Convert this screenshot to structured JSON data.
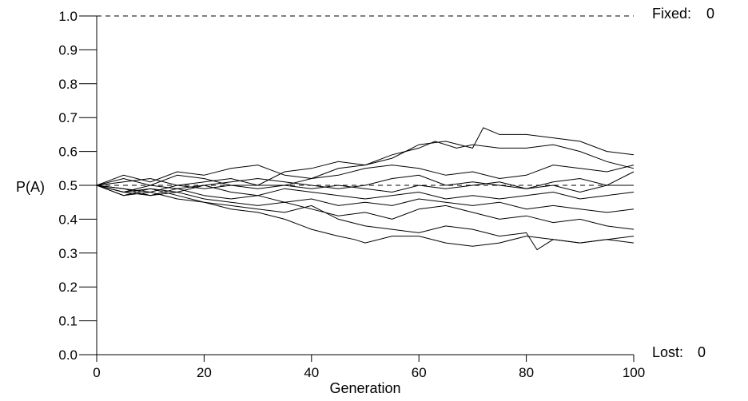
{
  "chart_data": {
    "type": "line",
    "xlabel": "Generation",
    "ylabel": "P(A)",
    "xlim": [
      0,
      100
    ],
    "ylim": [
      0.0,
      1.0
    ],
    "x_ticks": [
      "0",
      "20",
      "40",
      "60",
      "80",
      "100"
    ],
    "y_ticks": [
      "0.0",
      "0.1",
      "0.2",
      "0.3",
      "0.4",
      "0.5",
      "0.6",
      "0.7",
      "0.8",
      "0.9",
      "1.0"
    ],
    "reference_lines": [
      0.0,
      0.5,
      1.0
    ],
    "fixed_label": "Fixed:",
    "fixed_count": "0",
    "lost_label": "Lost:",
    "lost_count": "0",
    "series": [
      {
        "values": [
          [
            0,
            0.5
          ],
          [
            5,
            0.52
          ],
          [
            10,
            0.5
          ],
          [
            15,
            0.53
          ],
          [
            20,
            0.52
          ],
          [
            25,
            0.5
          ],
          [
            30,
            0.5
          ],
          [
            35,
            0.54
          ],
          [
            40,
            0.55
          ],
          [
            45,
            0.57
          ],
          [
            50,
            0.56
          ],
          [
            55,
            0.58
          ],
          [
            60,
            0.62
          ],
          [
            65,
            0.63
          ],
          [
            70,
            0.61
          ],
          [
            72,
            0.67
          ],
          [
            75,
            0.65
          ],
          [
            80,
            0.65
          ],
          [
            85,
            0.64
          ],
          [
            90,
            0.63
          ],
          [
            95,
            0.6
          ],
          [
            100,
            0.59
          ]
        ]
      },
      {
        "values": [
          [
            0,
            0.5
          ],
          [
            5,
            0.51
          ],
          [
            10,
            0.52
          ],
          [
            15,
            0.5
          ],
          [
            20,
            0.51
          ],
          [
            25,
            0.52
          ],
          [
            30,
            0.5
          ],
          [
            35,
            0.5
          ],
          [
            40,
            0.52
          ],
          [
            45,
            0.55
          ],
          [
            50,
            0.56
          ],
          [
            55,
            0.59
          ],
          [
            60,
            0.61
          ],
          [
            63,
            0.63
          ],
          [
            67,
            0.61
          ],
          [
            70,
            0.62
          ],
          [
            75,
            0.61
          ],
          [
            80,
            0.61
          ],
          [
            85,
            0.62
          ],
          [
            90,
            0.6
          ],
          [
            95,
            0.57
          ],
          [
            100,
            0.55
          ]
        ]
      },
      {
        "values": [
          [
            0,
            0.5
          ],
          [
            5,
            0.53
          ],
          [
            10,
            0.51
          ],
          [
            15,
            0.54
          ],
          [
            20,
            0.53
          ],
          [
            25,
            0.55
          ],
          [
            30,
            0.56
          ],
          [
            35,
            0.53
          ],
          [
            40,
            0.52
          ],
          [
            45,
            0.53
          ],
          [
            50,
            0.55
          ],
          [
            55,
            0.56
          ],
          [
            60,
            0.55
          ],
          [
            65,
            0.53
          ],
          [
            70,
            0.54
          ],
          [
            75,
            0.52
          ],
          [
            80,
            0.53
          ],
          [
            85,
            0.56
          ],
          [
            90,
            0.55
          ],
          [
            95,
            0.54
          ],
          [
            100,
            0.56
          ]
        ]
      },
      {
        "values": [
          [
            0,
            0.5
          ],
          [
            5,
            0.48
          ],
          [
            10,
            0.5
          ],
          [
            15,
            0.49
          ],
          [
            20,
            0.5
          ],
          [
            25,
            0.51
          ],
          [
            30,
            0.52
          ],
          [
            35,
            0.51
          ],
          [
            40,
            0.5
          ],
          [
            45,
            0.49
          ],
          [
            50,
            0.5
          ],
          [
            55,
            0.52
          ],
          [
            60,
            0.53
          ],
          [
            65,
            0.5
          ],
          [
            70,
            0.51
          ],
          [
            75,
            0.5
          ],
          [
            80,
            0.49
          ],
          [
            85,
            0.51
          ],
          [
            90,
            0.52
          ],
          [
            95,
            0.5
          ],
          [
            100,
            0.54
          ]
        ]
      },
      {
        "values": [
          [
            0,
            0.5
          ],
          [
            5,
            0.49
          ],
          [
            10,
            0.48
          ],
          [
            15,
            0.5
          ],
          [
            20,
            0.49
          ],
          [
            25,
            0.5
          ],
          [
            30,
            0.49
          ],
          [
            35,
            0.5
          ],
          [
            40,
            0.49
          ],
          [
            45,
            0.5
          ],
          [
            50,
            0.49
          ],
          [
            55,
            0.48
          ],
          [
            60,
            0.5
          ],
          [
            65,
            0.49
          ],
          [
            70,
            0.5
          ],
          [
            75,
            0.51
          ],
          [
            80,
            0.49
          ],
          [
            85,
            0.5
          ],
          [
            90,
            0.48
          ],
          [
            95,
            0.5
          ],
          [
            100,
            0.5
          ]
        ]
      },
      {
        "values": [
          [
            0,
            0.5
          ],
          [
            5,
            0.47
          ],
          [
            10,
            0.49
          ],
          [
            15,
            0.48
          ],
          [
            20,
            0.5
          ],
          [
            25,
            0.48
          ],
          [
            30,
            0.47
          ],
          [
            35,
            0.49
          ],
          [
            40,
            0.48
          ],
          [
            45,
            0.47
          ],
          [
            50,
            0.46
          ],
          [
            55,
            0.47
          ],
          [
            60,
            0.48
          ],
          [
            65,
            0.46
          ],
          [
            70,
            0.47
          ],
          [
            75,
            0.46
          ],
          [
            80,
            0.47
          ],
          [
            85,
            0.48
          ],
          [
            90,
            0.46
          ],
          [
            95,
            0.47
          ],
          [
            100,
            0.48
          ]
        ]
      },
      {
        "values": [
          [
            0,
            0.5
          ],
          [
            5,
            0.48
          ],
          [
            10,
            0.47
          ],
          [
            15,
            0.49
          ],
          [
            20,
            0.47
          ],
          [
            25,
            0.46
          ],
          [
            30,
            0.47
          ],
          [
            35,
            0.45
          ],
          [
            40,
            0.46
          ],
          [
            45,
            0.44
          ],
          [
            50,
            0.45
          ],
          [
            55,
            0.44
          ],
          [
            60,
            0.46
          ],
          [
            65,
            0.45
          ],
          [
            70,
            0.44
          ],
          [
            75,
            0.45
          ],
          [
            80,
            0.43
          ],
          [
            85,
            0.44
          ],
          [
            90,
            0.43
          ],
          [
            95,
            0.42
          ],
          [
            100,
            0.43
          ]
        ]
      },
      {
        "values": [
          [
            0,
            0.5
          ],
          [
            5,
            0.49
          ],
          [
            10,
            0.47
          ],
          [
            15,
            0.48
          ],
          [
            20,
            0.46
          ],
          [
            25,
            0.45
          ],
          [
            30,
            0.44
          ],
          [
            35,
            0.45
          ],
          [
            40,
            0.43
          ],
          [
            45,
            0.41
          ],
          [
            50,
            0.42
          ],
          [
            55,
            0.4
          ],
          [
            60,
            0.43
          ],
          [
            65,
            0.44
          ],
          [
            70,
            0.42
          ],
          [
            75,
            0.4
          ],
          [
            80,
            0.41
          ],
          [
            85,
            0.39
          ],
          [
            90,
            0.4
          ],
          [
            95,
            0.38
          ],
          [
            100,
            0.37
          ]
        ]
      },
      {
        "values": [
          [
            0,
            0.5
          ],
          [
            5,
            0.48
          ],
          [
            10,
            0.49
          ],
          [
            15,
            0.47
          ],
          [
            20,
            0.45
          ],
          [
            25,
            0.44
          ],
          [
            30,
            0.43
          ],
          [
            35,
            0.42
          ],
          [
            40,
            0.44
          ],
          [
            45,
            0.4
          ],
          [
            50,
            0.38
          ],
          [
            55,
            0.37
          ],
          [
            60,
            0.36
          ],
          [
            65,
            0.38
          ],
          [
            70,
            0.37
          ],
          [
            75,
            0.35
          ],
          [
            80,
            0.36
          ],
          [
            82,
            0.31
          ],
          [
            85,
            0.34
          ],
          [
            90,
            0.33
          ],
          [
            95,
            0.34
          ],
          [
            100,
            0.35
          ]
        ]
      },
      {
        "values": [
          [
            0,
            0.5
          ],
          [
            5,
            0.47
          ],
          [
            10,
            0.48
          ],
          [
            15,
            0.46
          ],
          [
            20,
            0.45
          ],
          [
            25,
            0.43
          ],
          [
            30,
            0.42
          ],
          [
            35,
            0.4
          ],
          [
            40,
            0.37
          ],
          [
            45,
            0.35
          ],
          [
            48,
            0.34
          ],
          [
            50,
            0.33
          ],
          [
            55,
            0.35
          ],
          [
            60,
            0.35
          ],
          [
            65,
            0.33
          ],
          [
            70,
            0.32
          ],
          [
            75,
            0.33
          ],
          [
            80,
            0.35
          ],
          [
            85,
            0.34
          ],
          [
            90,
            0.33
          ],
          [
            95,
            0.34
          ],
          [
            100,
            0.33
          ]
        ]
      }
    ]
  }
}
